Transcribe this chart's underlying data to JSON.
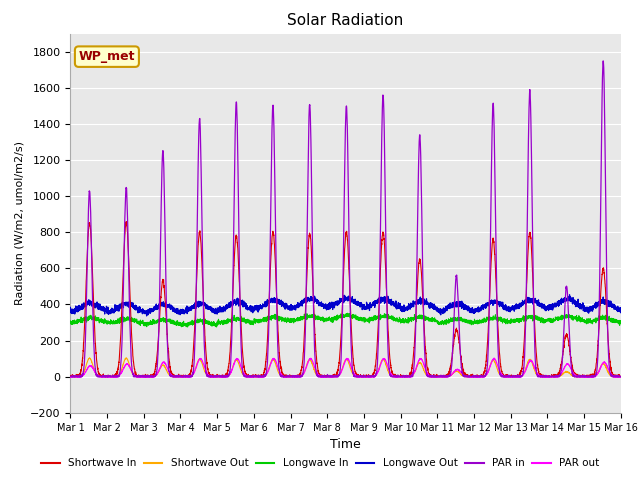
{
  "title": "Solar Radiation",
  "xlabel": "Time",
  "ylabel": "Radiation (W/m2, umol/m2/s)",
  "ylim": [
    -200,
    1900
  ],
  "yticks": [
    -200,
    0,
    200,
    400,
    600,
    800,
    1000,
    1200,
    1400,
    1600,
    1800
  ],
  "x_tick_labels": [
    "Mar 1",
    "Mar 2",
    "Mar 3",
    "Mar 4",
    "Mar 5",
    "Mar 6",
    "Mar 7",
    "Mar 8",
    "Mar 9",
    "Mar 10",
    "Mar 11",
    "Mar 12",
    "Mar 13",
    "Mar 14",
    "Mar 15",
    "Mar 16"
  ],
  "annotation_text": "WP_met",
  "annotation_bg": "#ffffcc",
  "annotation_border": "#cc9900",
  "annotation_text_color": "#990000",
  "colors": {
    "shortwave_in": "#dd0000",
    "shortwave_out": "#ffaa00",
    "longwave_in": "#00cc00",
    "longwave_out": "#0000cc",
    "par_in": "#9900cc",
    "par_out": "#ff00ff"
  },
  "background_color": "#e8e8e8",
  "grid_color": "#ffffff",
  "n_days": 15,
  "pts_per_day": 288,
  "sw_peaks": [
    850,
    850,
    530,
    800,
    780,
    800,
    790,
    800,
    800,
    650,
    260,
    760,
    800,
    230,
    600
  ],
  "par_peaks": [
    1030,
    1050,
    1250,
    1430,
    1520,
    1500,
    1510,
    1500,
    1560,
    1340,
    560,
    1510,
    1580,
    500,
    1750
  ],
  "par_out_peaks": [
    60,
    70,
    80,
    100,
    100,
    100,
    100,
    100,
    100,
    100,
    40,
    100,
    90,
    70,
    80
  ],
  "lw_in_base": [
    300,
    295,
    290,
    285,
    295,
    305,
    310,
    315,
    310,
    305,
    295,
    300,
    305,
    310,
    300
  ],
  "lw_out_base": [
    355,
    350,
    345,
    350,
    360,
    370,
    375,
    380,
    375,
    365,
    350,
    360,
    370,
    375,
    360
  ]
}
